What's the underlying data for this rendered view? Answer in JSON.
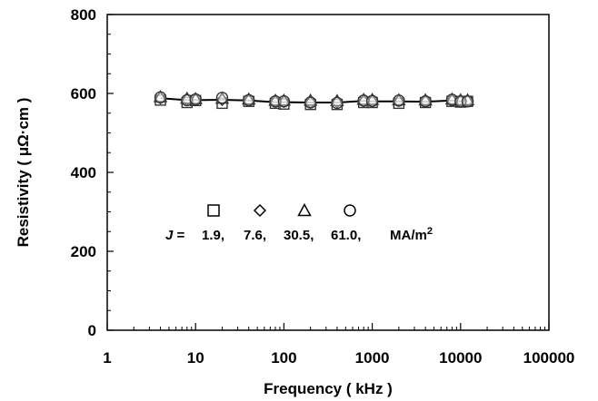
{
  "chart_data": {
    "type": "scatter",
    "title": "",
    "xlabel": "Frequency ( kHz )",
    "ylabel": "Resistivity ( μΩ·cm )",
    "x_scale": "log",
    "xlim": [
      1,
      100000
    ],
    "ylim": [
      0,
      800
    ],
    "x_ticks": [
      "1",
      "10",
      "100",
      "1000",
      "10000",
      "100000"
    ],
    "y_ticks": [
      "0",
      "200",
      "400",
      "600",
      "800"
    ],
    "grid": false,
    "legend_position": "center",
    "legend_prefix": "J =",
    "legend_unit": "MA/m",
    "legend_unit_sup": "2",
    "series": [
      {
        "name": "1.9",
        "marker": "square",
        "x": [
          4,
          8,
          10,
          20,
          40,
          80,
          100,
          200,
          400,
          800,
          1000,
          2000,
          4000,
          8000,
          10000,
          12000
        ],
        "y": [
          583,
          577,
          582,
          575,
          580,
          575,
          573,
          572,
          572,
          577,
          577,
          575,
          577,
          580,
          578,
          580
        ]
      },
      {
        "name": "7.6",
        "marker": "diamond",
        "x": [
          4,
          8,
          10,
          20,
          40,
          80,
          100,
          200,
          400,
          800,
          1000,
          2000,
          4000,
          8000,
          10000,
          12000
        ],
        "y": [
          588,
          584,
          584,
          584,
          582,
          579,
          579,
          577,
          578,
          580,
          580,
          581,
          580,
          583,
          580,
          581
        ]
      },
      {
        "name": "30.5",
        "marker": "triangle",
        "x": [
          4,
          8,
          10,
          20,
          40,
          80,
          100,
          200,
          400,
          800,
          1000,
          2000,
          4000,
          8000,
          10000,
          12000
        ],
        "y": [
          591,
          587,
          586,
          587,
          585,
          582,
          582,
          582,
          581,
          584,
          584,
          583,
          583,
          585,
          583,
          583
        ]
      },
      {
        "name": "61.0",
        "marker": "circle",
        "x": [
          4,
          8,
          10,
          20,
          40,
          80,
          100,
          200,
          400,
          800,
          1000,
          2000,
          4000,
          8000,
          10000,
          12000
        ],
        "y": [
          590,
          583,
          585,
          589,
          583,
          580,
          580,
          577,
          576,
          582,
          581,
          582,
          580,
          584,
          580,
          580
        ]
      }
    ],
    "fit_line": {
      "x": [
        4,
        8,
        10,
        20,
        40,
        80,
        100,
        200,
        400,
        800,
        1000,
        2000,
        4000,
        8000,
        10000,
        12000
      ],
      "y": [
        588,
        583,
        583,
        584,
        582,
        578,
        578,
        577,
        577,
        581,
        580,
        580,
        579,
        582,
        580,
        581
      ]
    }
  }
}
